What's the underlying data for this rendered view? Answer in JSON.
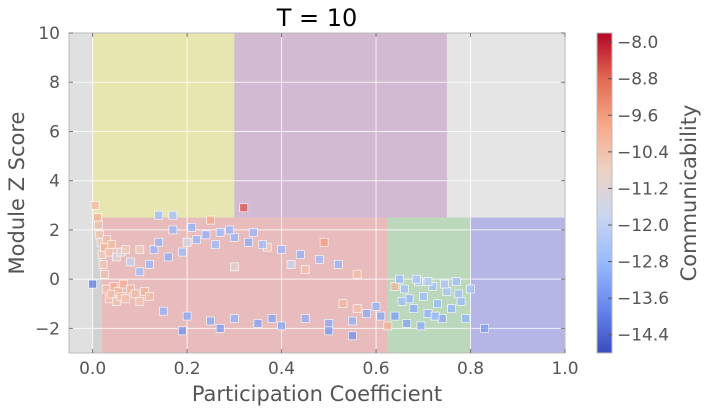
{
  "chart_data": {
    "type": "scatter",
    "title": "T = 10",
    "xlabel": "Participation Coefficient",
    "ylabel": "Module Z Score",
    "xlim": [
      -0.05,
      1.0
    ],
    "ylim": [
      -3.0,
      10.0
    ],
    "xticks": [
      0.0,
      0.2,
      0.4,
      0.6,
      0.8,
      1.0
    ],
    "xtick_labels": [
      "0.0",
      "0.2",
      "0.4",
      "0.6",
      "0.8",
      "1.0"
    ],
    "yticks": [
      -2,
      0,
      2,
      4,
      6,
      8,
      10
    ],
    "ytick_labels": [
      "−2",
      "0",
      "2",
      "4",
      "6",
      "8",
      "10"
    ],
    "grid": true,
    "background": "#e5e5e5",
    "regions": [
      {
        "x0": -0.05,
        "x1": 0.0,
        "y0": -3.0,
        "y1": 10.0,
        "color": "#e0e0e0"
      },
      {
        "x0": 0.0,
        "x1": 0.3,
        "y0": 2.5,
        "y1": 10.0,
        "color": "#e8e6b0"
      },
      {
        "x0": 0.3,
        "x1": 0.75,
        "y0": 2.5,
        "y1": 10.0,
        "color": "#d2bad2"
      },
      {
        "x0": 0.0,
        "x1": 0.02,
        "y0": -3.0,
        "y1": 2.5,
        "color": "#d2d2d2"
      },
      {
        "x0": 0.02,
        "x1": 0.625,
        "y0": -3.0,
        "y1": 2.5,
        "color": "#e8bcbc"
      },
      {
        "x0": 0.625,
        "x1": 0.8,
        "y0": -3.0,
        "y1": 2.5,
        "color": "#bcd8bc"
      },
      {
        "x0": 0.8,
        "x1": 1.0,
        "y0": -3.0,
        "y1": 2.5,
        "color": "#b5b5e6"
      }
    ],
    "colorbar": {
      "label": "Communicability",
      "min": -14.8,
      "max": -7.8,
      "ticks": [
        -8.0,
        -8.8,
        -9.6,
        -10.4,
        -11.2,
        -12.0,
        -12.8,
        -13.6,
        -14.4
      ],
      "tick_labels": [
        "−8.0",
        "−8.8",
        "−9.6",
        "−10.4",
        "−11.2",
        "−12.0",
        "−12.8",
        "−13.6",
        "−14.4"
      ],
      "colors": [
        "#3b4cc0",
        "#6788ee",
        "#9abbff",
        "#c9d7f0",
        "#edd1c2",
        "#f7a889",
        "#e26952",
        "#b40426"
      ]
    },
    "points": [
      {
        "x": 0.0,
        "y": -0.2,
        "c": -14.0
      },
      {
        "x": 0.005,
        "y": 3.0,
        "c": -10.2
      },
      {
        "x": 0.01,
        "y": 2.5,
        "c": -10.0
      },
      {
        "x": 0.012,
        "y": 2.2,
        "c": -10.3
      },
      {
        "x": 0.015,
        "y": 1.8,
        "c": -10.4
      },
      {
        "x": 0.018,
        "y": 1.5,
        "c": -10.6
      },
      {
        "x": 0.02,
        "y": 1.0,
        "c": -10.6
      },
      {
        "x": 0.022,
        "y": 0.6,
        "c": -10.5
      },
      {
        "x": 0.025,
        "y": 0.2,
        "c": -10.4
      },
      {
        "x": 0.03,
        "y": -0.4,
        "c": -10.3
      },
      {
        "x": 0.035,
        "y": -0.8,
        "c": -10.4
      },
      {
        "x": 0.04,
        "y": -0.6,
        "c": -10.2
      },
      {
        "x": 0.045,
        "y": -0.3,
        "c": -10.0
      },
      {
        "x": 0.05,
        "y": -0.9,
        "c": -10.5
      },
      {
        "x": 0.055,
        "y": -0.5,
        "c": -10.1
      },
      {
        "x": 0.06,
        "y": -0.7,
        "c": -10.3
      },
      {
        "x": 0.065,
        "y": -0.2,
        "c": -10.0
      },
      {
        "x": 0.07,
        "y": -0.8,
        "c": -10.4
      },
      {
        "x": 0.08,
        "y": -0.4,
        "c": -10.2
      },
      {
        "x": 0.09,
        "y": -0.6,
        "c": -10.3
      },
      {
        "x": 0.1,
        "y": -0.9,
        "c": -10.5
      },
      {
        "x": 0.11,
        "y": -0.5,
        "c": -10.1
      },
      {
        "x": 0.12,
        "y": -0.7,
        "c": -10.3
      },
      {
        "x": 0.025,
        "y": 1.3,
        "c": -10.0
      },
      {
        "x": 0.03,
        "y": 1.6,
        "c": -10.2
      },
      {
        "x": 0.035,
        "y": 1.1,
        "c": -10.4
      },
      {
        "x": 0.04,
        "y": 1.4,
        "c": -10.3
      },
      {
        "x": 0.05,
        "y": 0.9,
        "c": -11.3
      },
      {
        "x": 0.06,
        "y": 1.1,
        "c": -11.3
      },
      {
        "x": 0.07,
        "y": 1.2,
        "c": -10.6
      },
      {
        "x": 0.08,
        "y": 0.7,
        "c": -12.0
      },
      {
        "x": 0.1,
        "y": 1.2,
        "c": -10.8
      },
      {
        "x": 0.14,
        "y": 2.6,
        "c": -12.8
      },
      {
        "x": 0.17,
        "y": 2.6,
        "c": -12.7
      },
      {
        "x": 0.25,
        "y": 2.4,
        "c": -9.8
      },
      {
        "x": 0.32,
        "y": 2.9,
        "c": -8.6
      },
      {
        "x": 0.49,
        "y": 1.5,
        "c": -9.6
      },
      {
        "x": 0.37,
        "y": 1.3,
        "c": -10.6
      },
      {
        "x": 0.2,
        "y": 1.5,
        "c": -11.6
      },
      {
        "x": 0.42,
        "y": 0.6,
        "c": -11.8
      },
      {
        "x": 0.56,
        "y": 0.2,
        "c": -10.3
      },
      {
        "x": 0.64,
        "y": -0.3,
        "c": -10.1
      },
      {
        "x": 0.625,
        "y": -1.9,
        "c": -10.0
      },
      {
        "x": 0.56,
        "y": -1.2,
        "c": -10.4
      },
      {
        "x": 0.45,
        "y": 0.4,
        "c": -10.4
      },
      {
        "x": 0.53,
        "y": -1.0,
        "c": -10.2
      },
      {
        "x": 0.3,
        "y": 0.5,
        "c": -11.1
      },
      {
        "x": 0.83,
        "y": -2.0,
        "c": -13.4
      },
      {
        "x": 0.65,
        "y": 0.0,
        "c": -12.8
      },
      {
        "x": 0.66,
        "y": -0.4,
        "c": -12.6
      },
      {
        "x": 0.67,
        "y": -0.8,
        "c": -12.9
      },
      {
        "x": 0.68,
        "y": -1.2,
        "c": -13.1
      },
      {
        "x": 0.69,
        "y": -0.1,
        "c": -12.4
      },
      {
        "x": 0.7,
        "y": -0.7,
        "c": -12.7
      },
      {
        "x": 0.71,
        "y": -1.4,
        "c": -13.0
      },
      {
        "x": 0.72,
        "y": -0.3,
        "c": -12.6
      },
      {
        "x": 0.73,
        "y": -1.0,
        "c": -12.8
      },
      {
        "x": 0.74,
        "y": -1.6,
        "c": -13.2
      },
      {
        "x": 0.75,
        "y": -0.5,
        "c": -12.5
      },
      {
        "x": 0.76,
        "y": -1.2,
        "c": -12.9
      },
      {
        "x": 0.77,
        "y": -0.1,
        "c": -12.7
      },
      {
        "x": 0.78,
        "y": -0.9,
        "c": -12.8
      },
      {
        "x": 0.79,
        "y": -1.6,
        "c": -13.0
      },
      {
        "x": 0.8,
        "y": -0.4,
        "c": -12.6
      },
      {
        "x": 0.665,
        "y": -1.8,
        "c": -13.3
      },
      {
        "x": 0.695,
        "y": -1.9,
        "c": -13.1
      },
      {
        "x": 0.725,
        "y": -1.5,
        "c": -12.9
      },
      {
        "x": 0.685,
        "y": 0.0,
        "c": -12.5
      },
      {
        "x": 0.71,
        "y": -0.1,
        "c": -12.3
      },
      {
        "x": 0.745,
        "y": -0.2,
        "c": -12.4
      },
      {
        "x": 0.775,
        "y": -0.6,
        "c": -12.6
      },
      {
        "x": 0.64,
        "y": -1.5,
        "c": -13.4
      },
      {
        "x": 0.655,
        "y": -0.9,
        "c": -12.7
      },
      {
        "x": 0.13,
        "y": 1.2,
        "c": -12.9
      },
      {
        "x": 0.16,
        "y": 0.9,
        "c": -13.1
      },
      {
        "x": 0.19,
        "y": 1.1,
        "c": -12.8
      },
      {
        "x": 0.22,
        "y": 1.6,
        "c": -12.9
      },
      {
        "x": 0.24,
        "y": 1.8,
        "c": -13.0
      },
      {
        "x": 0.27,
        "y": 1.9,
        "c": -12.8
      },
      {
        "x": 0.3,
        "y": 1.7,
        "c": -12.9
      },
      {
        "x": 0.33,
        "y": 1.5,
        "c": -13.1
      },
      {
        "x": 0.36,
        "y": 1.4,
        "c": -12.8
      },
      {
        "x": 0.4,
        "y": 1.2,
        "c": -12.9
      },
      {
        "x": 0.44,
        "y": 1.0,
        "c": -13.0
      },
      {
        "x": 0.48,
        "y": 0.8,
        "c": -12.8
      },
      {
        "x": 0.52,
        "y": 0.6,
        "c": -12.9
      },
      {
        "x": 0.15,
        "y": -1.3,
        "c": -13.0
      },
      {
        "x": 0.2,
        "y": -1.5,
        "c": -13.2
      },
      {
        "x": 0.25,
        "y": -1.7,
        "c": -13.1
      },
      {
        "x": 0.3,
        "y": -1.6,
        "c": -13.0
      },
      {
        "x": 0.35,
        "y": -1.8,
        "c": -13.3
      },
      {
        "x": 0.4,
        "y": -1.9,
        "c": -13.2
      },
      {
        "x": 0.45,
        "y": -1.6,
        "c": -13.1
      },
      {
        "x": 0.5,
        "y": -1.8,
        "c": -13.2
      },
      {
        "x": 0.55,
        "y": -1.7,
        "c": -13.0
      },
      {
        "x": 0.58,
        "y": -1.4,
        "c": -13.1
      },
      {
        "x": 0.6,
        "y": -1.1,
        "c": -13.0
      },
      {
        "x": 0.19,
        "y": -2.1,
        "c": -13.6
      },
      {
        "x": 0.27,
        "y": -2.0,
        "c": -13.4
      },
      {
        "x": 0.38,
        "y": -1.6,
        "c": -13.3
      },
      {
        "x": 0.5,
        "y": -2.1,
        "c": -13.5
      },
      {
        "x": 0.55,
        "y": -2.3,
        "c": -13.6
      },
      {
        "x": 0.61,
        "y": -1.5,
        "c": -13.2
      },
      {
        "x": 0.1,
        "y": 0.3,
        "c": -12.7
      },
      {
        "x": 0.12,
        "y": 0.6,
        "c": -12.8
      },
      {
        "x": 0.14,
        "y": 1.5,
        "c": -12.9
      },
      {
        "x": 0.17,
        "y": 2.0,
        "c": -12.9
      },
      {
        "x": 0.21,
        "y": 2.1,
        "c": -13.0
      },
      {
        "x": 0.26,
        "y": 1.4,
        "c": -12.8
      },
      {
        "x": 0.29,
        "y": 2.0,
        "c": -12.9
      },
      {
        "x": 0.34,
        "y": 1.9,
        "c": -12.9
      }
    ]
  }
}
